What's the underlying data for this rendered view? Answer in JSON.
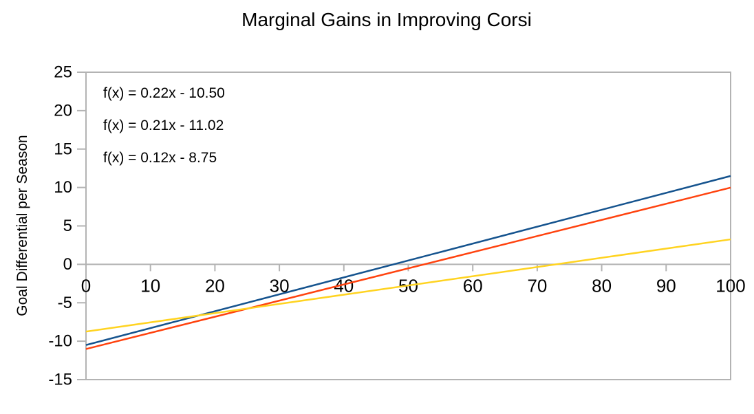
{
  "chart_data": {
    "type": "line",
    "title": "Marginal Gains in Improving Corsi",
    "xlabel": "",
    "ylabel": "Goal Differential per Season",
    "xlim": [
      0,
      100
    ],
    "ylim": [
      -15,
      25
    ],
    "x_ticks": [
      0,
      10,
      20,
      30,
      40,
      50,
      60,
      70,
      80,
      90,
      100
    ],
    "y_ticks": [
      25,
      20,
      15,
      10,
      5,
      0,
      -5,
      -10,
      -15
    ],
    "grid": false,
    "legend_position": "none",
    "axis_color": "#b3b3b3",
    "text_color": "#000000",
    "series": [
      {
        "id": "blue",
        "equation": "f(x) = 0.22x - 10.50",
        "slope": 0.22,
        "intercept": -10.5,
        "color": "#15538e",
        "x": [
          0,
          100
        ],
        "values": [
          -10.5,
          11.5
        ]
      },
      {
        "id": "red",
        "equation": "f(x) = 0.21x - 11.02",
        "slope": 0.21,
        "intercept": -11.02,
        "color": "#ff420e",
        "x": [
          0,
          100
        ],
        "values": [
          -11.02,
          9.98
        ]
      },
      {
        "id": "yellow",
        "equation": "f(x) = 0.12x - 8.75",
        "slope": 0.12,
        "intercept": -8.75,
        "color": "#ffd320",
        "x": [
          0,
          100
        ],
        "values": [
          -8.75,
          3.25
        ]
      }
    ]
  }
}
